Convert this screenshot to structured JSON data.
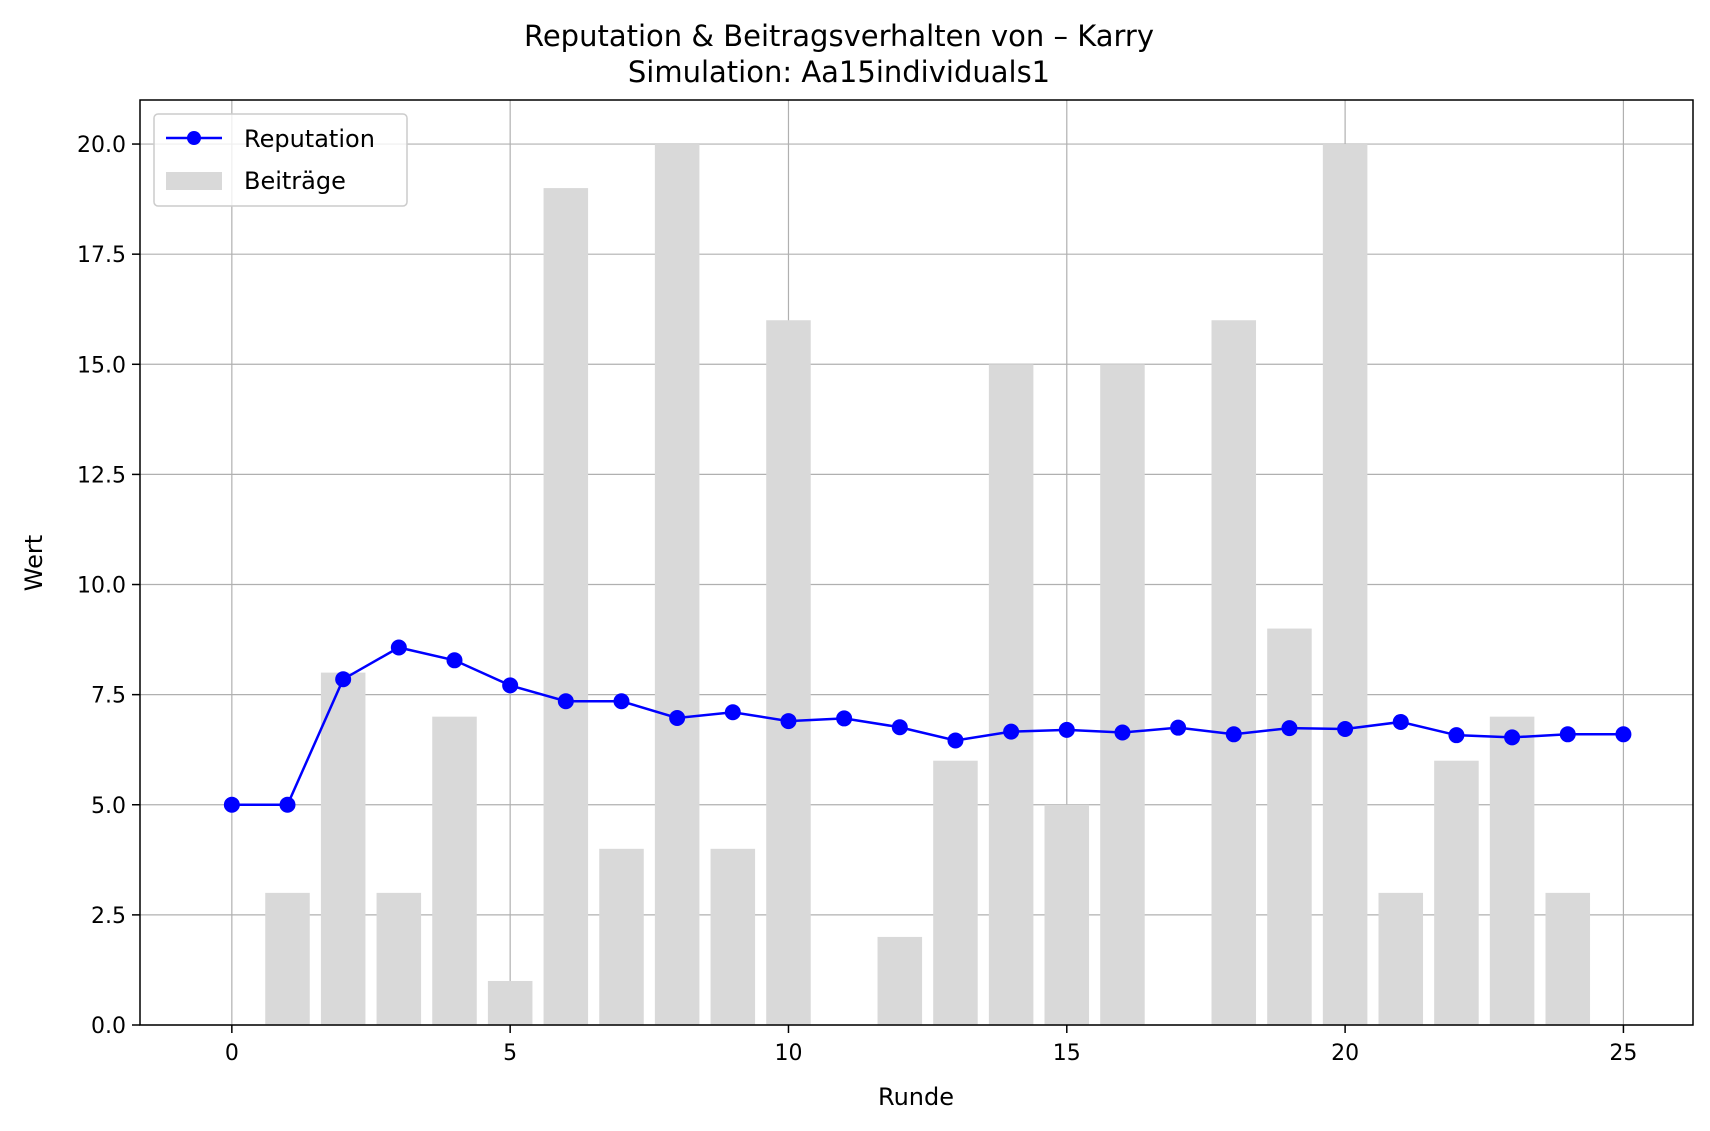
{
  "chart_data": {
    "type": "bar+line",
    "title": "Reputation & Beitragsverhalten von – Karry",
    "subtitle": "Simulation: Aa15individuals1",
    "xlabel": "Runde",
    "ylabel": "Wert",
    "xlim": [
      -1.65,
      26.25
    ],
    "ylim": [
      0,
      21
    ],
    "x_ticks": [
      "0",
      "5",
      "10",
      "15",
      "20",
      "25"
    ],
    "y_ticks": [
      "0.0",
      "2.5",
      "5.0",
      "7.5",
      "10.0",
      "12.5",
      "15.0",
      "17.5",
      "20.0"
    ],
    "grid": true,
    "legend_position": "top-left",
    "series": [
      {
        "name": "Reputation",
        "type": "line",
        "color": "#0000ff",
        "x": [
          0,
          1,
          2,
          3,
          4,
          5,
          6,
          7,
          8,
          9,
          10,
          11,
          12,
          13,
          14,
          15,
          16,
          17,
          18,
          19,
          20,
          21,
          22,
          23,
          24,
          25
        ],
        "values": [
          5.0,
          5.0,
          7.85,
          8.57,
          8.28,
          7.71,
          7.35,
          7.35,
          6.97,
          7.1,
          6.9,
          6.96,
          6.76,
          6.46,
          6.66,
          6.7,
          6.64,
          6.75,
          6.6,
          6.74,
          6.72,
          6.88,
          6.58,
          6.53,
          6.6,
          6.6
        ]
      },
      {
        "name": "Beiträge",
        "type": "bar",
        "color": "#d9d9d9",
        "x": [
          1,
          2,
          3,
          4,
          5,
          6,
          7,
          8,
          9,
          10,
          12,
          13,
          14,
          15,
          16,
          18,
          19,
          20,
          21,
          22,
          23,
          24
        ],
        "values": [
          3,
          8,
          3,
          7,
          1,
          19,
          4,
          20,
          4,
          16,
          2,
          6,
          15,
          5,
          15,
          16,
          9,
          20,
          3,
          6,
          7,
          3
        ]
      }
    ]
  }
}
